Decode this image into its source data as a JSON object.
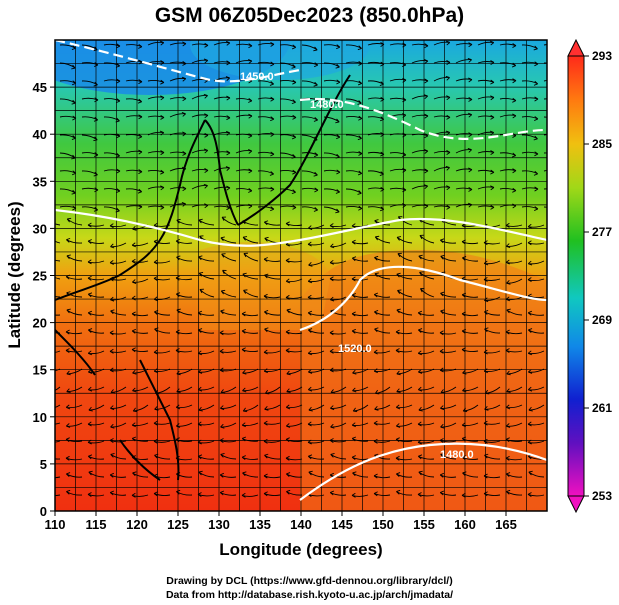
{
  "title": "GSM 06Z05Dec2023 (850.0hPa)",
  "x_axis": {
    "label": "Longitude (degrees)",
    "ticks": [
      "110",
      "115",
      "120",
      "125",
      "130",
      "135",
      "140",
      "145",
      "150",
      "155",
      "160",
      "165"
    ]
  },
  "y_axis": {
    "label": "Latitude  (degrees)",
    "ticks": [
      "0",
      "5",
      "10",
      "15",
      "20",
      "25",
      "30",
      "35",
      "40",
      "45"
    ]
  },
  "colorbar": {
    "ticks": [
      "253",
      "261",
      "269",
      "277",
      "285",
      "293"
    ]
  },
  "contour_labels": [
    "1450.0",
    "1480.0",
    "1520.0",
    "1480.0"
  ],
  "credits": [
    "Drawing by DCL (https://www.gfd-dennou.org/library/dcl/)",
    "Data from http://database.rish.kyoto-u.ac.jp/arch/jmadata/"
  ],
  "colors": {
    "cold": "#2050ff",
    "warm": "#ff3000"
  }
}
